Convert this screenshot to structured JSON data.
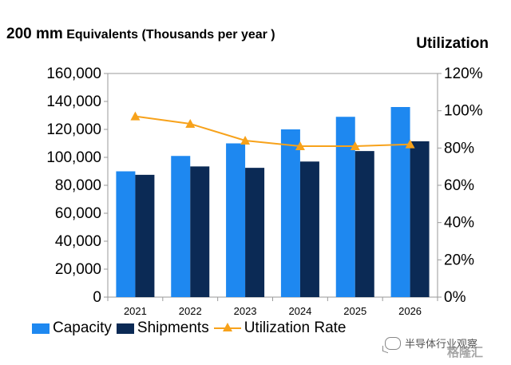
{
  "chart_data": {
    "type": "bar",
    "title_main": "200 mm",
    "title_rest": "Equivalents (Thousands per year )",
    "y2_title": "Utilization",
    "categories": [
      "2021",
      "2022",
      "2023",
      "2024",
      "2025",
      "2026"
    ],
    "series": [
      {
        "name": "Capacity",
        "type": "bar",
        "axis": "left",
        "color": "#1E88F0",
        "values": [
          90000,
          101000,
          110000,
          120000,
          129000,
          136000
        ]
      },
      {
        "name": "Shipments",
        "type": "bar",
        "axis": "left",
        "color": "#0B2A55",
        "values": [
          87500,
          93500,
          92500,
          97000,
          104500,
          111500
        ]
      },
      {
        "name": "Utilization Rate",
        "type": "line",
        "axis": "right",
        "color": "#F7A21B",
        "values": [
          97,
          93,
          84,
          81,
          81,
          82
        ]
      }
    ],
    "y_left": {
      "min": 0,
      "max": 160000,
      "ticks": [
        "0",
        "20,000",
        "40,000",
        "60,000",
        "80,000",
        "100,000",
        "120,000",
        "140,000",
        "160,000"
      ]
    },
    "y_right": {
      "min": 0,
      "max": 120,
      "ticks": [
        "0%",
        "20%",
        "40%",
        "60%",
        "80%",
        "100%",
        "120%"
      ]
    },
    "grid": false,
    "legend_position": "bottom"
  },
  "watermark": {
    "text": "半导体行业观察",
    "logo": "格隆汇"
  }
}
